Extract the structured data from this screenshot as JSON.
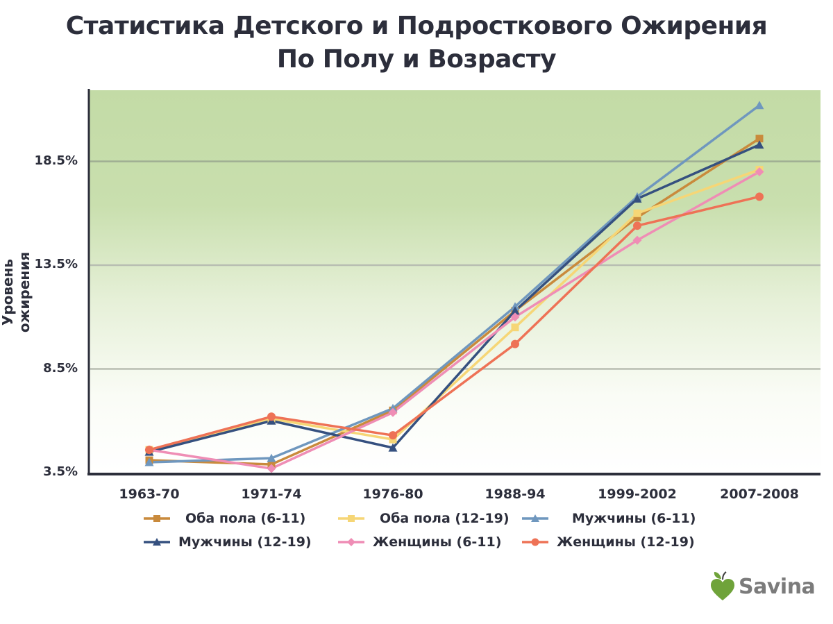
{
  "title": {
    "line1": "Статистика Детского и Подросткового Ожирения",
    "line2": "По Полу и Возрасту"
  },
  "brand": {
    "name": "Savina",
    "icon": "apple-heart-icon",
    "color": "#6fa33a",
    "text_color": "#7b7b7b"
  },
  "colors": {
    "plot_top": "#c3dba6",
    "plot_bottom": "#ffffff",
    "axis": "#2c2e3b",
    "grid": "#9aa792"
  },
  "chart_data": {
    "type": "line",
    "title": "Статистика Детского и Подросткового Ожирения По Полу и Возрасту",
    "xlabel": "",
    "ylabel": "Уровень ожирения",
    "categories": [
      "1963-70",
      "1971-74",
      "1976-80",
      "1988-94",
      "1999-2002",
      "2007-2008"
    ],
    "yticks": [
      "3.5%",
      "8.5%",
      "13.5%",
      "18.5%"
    ],
    "ytick_values": [
      3.5,
      8.5,
      13.5,
      18.5
    ],
    "ylim": [
      3.5,
      21.9
    ],
    "grid": true,
    "legend_position": "bottom",
    "series": [
      {
        "name": "Оба пола (6-11)",
        "color": "#c98a3c",
        "marker": "square",
        "values": [
          4.1,
          3.9,
          6.5,
          11.3,
          15.8,
          19.6
        ]
      },
      {
        "name": "Оба пола (12-19)",
        "color": "#f6d676",
        "marker": "square",
        "values": [
          4.6,
          6.1,
          5.1,
          10.5,
          16.0,
          18.1
        ]
      },
      {
        "name": "Мужчины (6-11)",
        "color": "#6f97be",
        "marker": "triangle",
        "values": [
          4.0,
          4.2,
          6.6,
          11.5,
          16.8,
          21.2
        ]
      },
      {
        "name": "Мужчины (12-19)",
        "color": "#35507f",
        "marker": "triangle",
        "values": [
          4.5,
          6.0,
          4.7,
          11.3,
          16.7,
          19.3
        ]
      },
      {
        "name": "Женщины (6-11)",
        "color": "#ef8db5",
        "marker": "diamond",
        "values": [
          4.6,
          3.7,
          6.4,
          11.0,
          14.7,
          18.0
        ]
      },
      {
        "name": "Женщины (12-19)",
        "color": "#ee7256",
        "marker": "circle",
        "values": [
          4.6,
          6.2,
          5.3,
          9.7,
          15.4,
          16.8
        ]
      }
    ]
  }
}
